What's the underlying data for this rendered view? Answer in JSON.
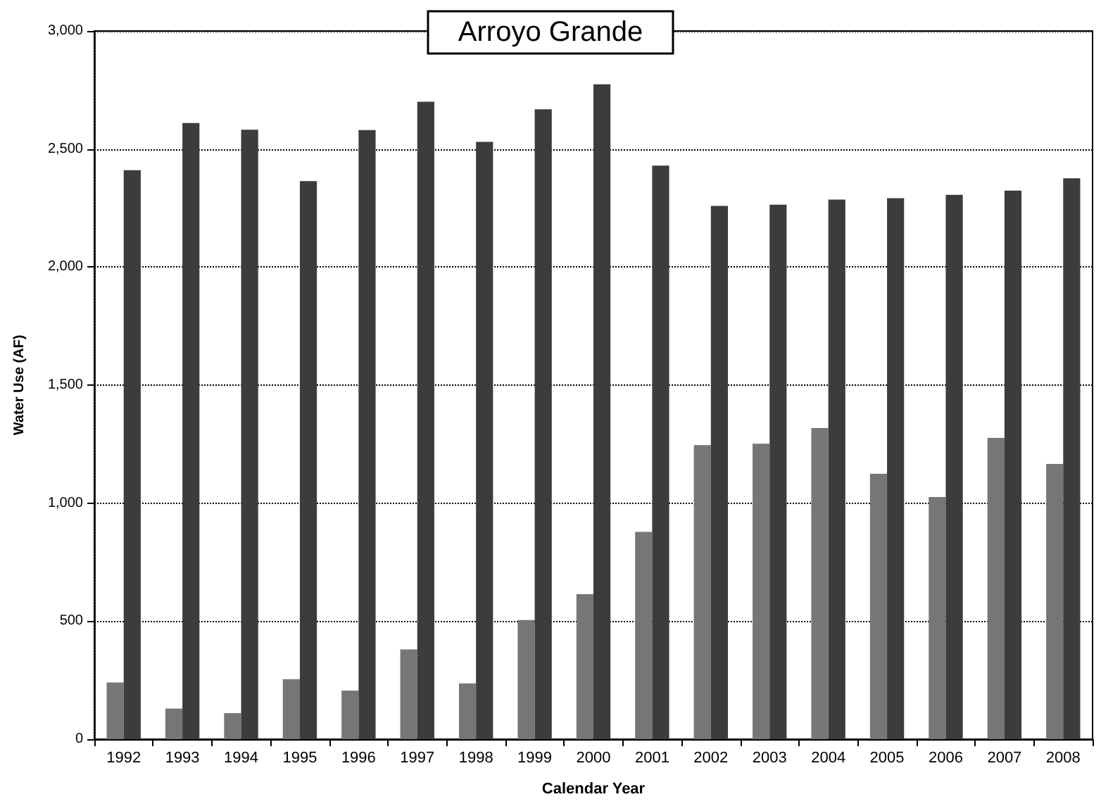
{
  "chart_data": {
    "type": "bar",
    "title": "Arroyo Grande",
    "xlabel": "Calendar Year",
    "ylabel": "Water Use (AF)",
    "categories": [
      "1992",
      "1993",
      "1994",
      "1995",
      "1996",
      "1997",
      "1998",
      "1999",
      "2000",
      "2001",
      "2002",
      "2003",
      "2004",
      "2005",
      "2006",
      "2007",
      "2008"
    ],
    "series": [
      {
        "color": "#767676",
        "values": [
          240,
          130,
          110,
          254,
          206,
          380,
          236,
          505,
          614,
          878,
          1246,
          1252,
          1318,
          1124,
          1026,
          1276,
          1166
        ]
      },
      {
        "color": "#3c3c3c",
        "values": [
          2410,
          2610,
          2582,
          2364,
          2580,
          2700,
          2530,
          2668,
          2774,
          2430,
          2259,
          2264,
          2286,
          2292,
          2306,
          2324,
          2376
        ]
      }
    ],
    "ylim": [
      0,
      3000
    ],
    "yticks": [
      {
        "value": 0,
        "label": "0"
      },
      {
        "value": 500,
        "label": "500"
      },
      {
        "value": 1000,
        "label": "1,000"
      },
      {
        "value": 1500,
        "label": "1,500"
      },
      {
        "value": 2000,
        "label": "2,000"
      },
      {
        "value": 2500,
        "label": "2,500"
      },
      {
        "value": 3000,
        "label": "3,000"
      }
    ],
    "grid": "y"
  }
}
